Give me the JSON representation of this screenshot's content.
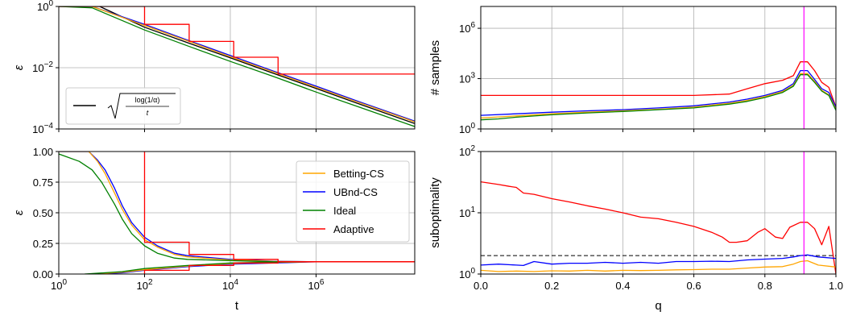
{
  "chart_data": [
    {
      "id": "tl",
      "type": "line",
      "xscale": "log",
      "yscale": "log",
      "xlim": [
        1,
        200000000
      ],
      "ylim": [
        0.0001,
        1
      ],
      "xlabel": "",
      "ylabel": "ε",
      "xticks": [
        {
          "v": 1,
          "t": ""
        },
        {
          "v": 100,
          "t": ""
        },
        {
          "v": 10000,
          "t": ""
        },
        {
          "v": 1000000,
          "t": ""
        }
      ],
      "yticks": [
        {
          "v": 0.0001,
          "b": "10",
          "e": "−4"
        },
        {
          "v": 0.01,
          "b": "10",
          "e": "−2"
        },
        {
          "v": 1,
          "b": "10",
          "e": "0"
        }
      ],
      "grid": true,
      "legend": {
        "placement": "lower-left",
        "entries": [
          {
            "name": "√(log(1/α)/t)",
            "color": "#000000"
          }
        ]
      },
      "series": [
        {
          "key": "bound",
          "color": "#000000",
          "x": [
            1,
            9,
            100,
            1000,
            10000,
            100000,
            1000000,
            10000000,
            200000000
          ],
          "y": [
            1,
            1,
            0.21,
            0.066,
            0.021,
            0.0066,
            0.0021,
            0.00066,
            0.00015
          ]
        },
        {
          "key": "ubnd",
          "color": "#0000ff",
          "x": [
            1,
            6,
            100,
            1000,
            10000,
            100000,
            1000000,
            10000000,
            200000000
          ],
          "y": [
            1,
            1,
            0.26,
            0.08,
            0.025,
            0.0078,
            0.0025,
            0.00078,
            0.00018
          ]
        },
        {
          "key": "betting",
          "color": "#ffa500",
          "x": [
            1,
            6,
            100,
            1000,
            10000,
            100000,
            1000000,
            10000000,
            200000000
          ],
          "y": [
            1,
            1,
            0.24,
            0.075,
            0.023,
            0.0073,
            0.0023,
            0.00073,
            0.00017
          ]
        },
        {
          "key": "ideal",
          "color": "#008000",
          "x": [
            1,
            6,
            100,
            1000,
            10000,
            100000,
            1000000,
            10000000,
            200000000
          ],
          "y": [
            1,
            0.9,
            0.17,
            0.052,
            0.016,
            0.0052,
            0.0016,
            0.00052,
            0.00012
          ]
        },
        {
          "key": "adaptive",
          "color": "#ff0000",
          "step": true,
          "x": [
            1,
            100,
            100,
            1100,
            1100,
            12000,
            12000,
            130000,
            130000,
            200000000
          ],
          "y": [
            1,
            1,
            0.26,
            0.26,
            0.072,
            0.072,
            0.022,
            0.022,
            0.0062,
            0.0062
          ]
        }
      ]
    },
    {
      "id": "bl",
      "type": "line",
      "xscale": "log",
      "yscale": "linear",
      "xlim": [
        1,
        200000000
      ],
      "ylim": [
        0,
        1
      ],
      "xlabel": "t",
      "ylabel": "ε",
      "xticks": [
        {
          "v": 1,
          "b": "10",
          "e": "0"
        },
        {
          "v": 100,
          "b": "10",
          "e": "2"
        },
        {
          "v": 10000,
          "b": "10",
          "e": "4"
        },
        {
          "v": 1000000,
          "b": "10",
          "e": "6"
        }
      ],
      "yticks": [
        {
          "v": 0,
          "t": "0.00"
        },
        {
          "v": 0.25,
          "t": "0.25"
        },
        {
          "v": 0.5,
          "t": "0.50"
        },
        {
          "v": 0.75,
          "t": "0.75"
        },
        {
          "v": 1,
          "t": "1.00"
        }
      ],
      "grid": true,
      "legend": {
        "placement": "upper-right",
        "entries": [
          {
            "name": "Betting-CS",
            "color": "#ffa500"
          },
          {
            "name": "UBnd-CS",
            "color": "#0000ff"
          },
          {
            "name": "Ideal",
            "color": "#008000"
          },
          {
            "name": "Adaptive",
            "color": "#ff0000"
          }
        ]
      },
      "series": [
        {
          "key": "ubnd_up",
          "color": "#0000ff",
          "x": [
            1,
            5,
            8,
            12,
            20,
            30,
            50,
            100,
            200,
            500,
            1000,
            10000,
            100000,
            1000000,
            200000000
          ],
          "y": [
            1,
            1,
            0.93,
            0.85,
            0.7,
            0.56,
            0.42,
            0.3,
            0.23,
            0.17,
            0.15,
            0.12,
            0.105,
            0.1,
            0.1
          ]
        },
        {
          "key": "betting_up",
          "color": "#ffa500",
          "x": [
            1,
            5,
            8,
            12,
            20,
            30,
            50,
            100,
            200,
            500,
            1000,
            10000,
            100000,
            1000000,
            200000000
          ],
          "y": [
            1,
            1,
            0.92,
            0.82,
            0.66,
            0.53,
            0.4,
            0.28,
            0.22,
            0.16,
            0.14,
            0.115,
            0.103,
            0.1,
            0.1
          ]
        },
        {
          "key": "ideal_up",
          "color": "#008000",
          "x": [
            1,
            3,
            6,
            10,
            20,
            30,
            50,
            100,
            200,
            500,
            1000,
            10000,
            100000,
            1000000,
            200000000
          ],
          "y": [
            0.98,
            0.92,
            0.85,
            0.75,
            0.57,
            0.45,
            0.33,
            0.23,
            0.17,
            0.13,
            0.12,
            0.11,
            0.1,
            0.1,
            0.1
          ]
        },
        {
          "key": "ubnd_lo",
          "color": "#0000ff",
          "x": [
            8,
            30,
            100,
            1000,
            10000,
            100000,
            1000000,
            200000000
          ],
          "y": [
            0,
            0.01,
            0.03,
            0.06,
            0.08,
            0.09,
            0.1,
            0.1
          ]
        },
        {
          "key": "betting_lo",
          "color": "#ffa500",
          "x": [
            6,
            30,
            100,
            1000,
            10000,
            100000,
            1000000,
            200000000
          ],
          "y": [
            0,
            0.015,
            0.035,
            0.065,
            0.085,
            0.095,
            0.1,
            0.1
          ]
        },
        {
          "key": "ideal_lo",
          "color": "#008000",
          "x": [
            4,
            30,
            100,
            1000,
            10000,
            100000,
            1000000,
            200000000
          ],
          "y": [
            0,
            0.02,
            0.045,
            0.07,
            0.09,
            0.097,
            0.1,
            0.1
          ]
        },
        {
          "key": "adaptive_up",
          "color": "#ff0000",
          "step": true,
          "x": [
            100,
            100,
            1100,
            1100,
            12000,
            12000,
            130000,
            130000,
            200000000
          ],
          "y": [
            1,
            0.26,
            0.26,
            0.16,
            0.16,
            0.12,
            0.12,
            0.1,
            0.1
          ]
        },
        {
          "key": "adaptive_lo",
          "color": "#ff0000",
          "step": true,
          "x": [
            100,
            100,
            1100,
            1100,
            12000,
            12000,
            130000,
            130000,
            200000000
          ],
          "y": [
            0,
            0.03,
            0.03,
            0.07,
            0.07,
            0.09,
            0.09,
            0.1,
            0.1
          ]
        }
      ]
    },
    {
      "id": "tr",
      "type": "line",
      "xscale": "linear",
      "yscale": "log",
      "xlim": [
        0,
        1
      ],
      "ylim": [
        1,
        20000000
      ],
      "xlabel": "",
      "ylabel": "# samples",
      "xticks": [
        {
          "v": 0,
          "t": ""
        },
        {
          "v": 0.2,
          "t": ""
        },
        {
          "v": 0.4,
          "t": ""
        },
        {
          "v": 0.6,
          "t": ""
        },
        {
          "v": 0.8,
          "t": ""
        },
        {
          "v": 1,
          "t": ""
        }
      ],
      "yticks": [
        {
          "v": 1,
          "b": "10",
          "e": "0"
        },
        {
          "v": 1000,
          "b": "10",
          "e": "3"
        },
        {
          "v": 1000000,
          "b": "10",
          "e": "6"
        }
      ],
      "grid": true,
      "vline": {
        "x": 0.91,
        "color": "#ff00ff"
      },
      "series": [
        {
          "key": "adaptive",
          "color": "#ff0000",
          "x": [
            0,
            0.1,
            0.2,
            0.3,
            0.4,
            0.5,
            0.6,
            0.7,
            0.75,
            0.8,
            0.85,
            0.88,
            0.9,
            0.92,
            0.94,
            0.96,
            0.98,
            1
          ],
          "y": [
            100,
            100,
            100,
            100,
            100,
            100,
            100,
            120,
            250,
            500,
            800,
            1500,
            10000,
            10000,
            3000,
            600,
            300,
            20
          ]
        },
        {
          "key": "ubnd",
          "color": "#0000ff",
          "x": [
            0,
            0.1,
            0.2,
            0.3,
            0.4,
            0.5,
            0.6,
            0.7,
            0.75,
            0.8,
            0.85,
            0.88,
            0.9,
            0.92,
            0.94,
            0.96,
            0.98,
            1
          ],
          "y": [
            6.5,
            8,
            10,
            12,
            14,
            18,
            24,
            40,
            60,
            100,
            200,
            500,
            3000,
            3000,
            900,
            250,
            150,
            20
          ]
        },
        {
          "key": "betting",
          "color": "#ffa500",
          "x": [
            0,
            0.1,
            0.2,
            0.3,
            0.4,
            0.5,
            0.6,
            0.7,
            0.75,
            0.8,
            0.85,
            0.88,
            0.9,
            0.92,
            0.94,
            0.96,
            0.98,
            1
          ],
          "y": [
            4.5,
            6,
            8,
            10,
            12,
            15,
            20,
            34,
            50,
            85,
            170,
            400,
            2000,
            2000,
            700,
            200,
            110,
            15
          ]
        },
        {
          "key": "ideal",
          "color": "#008000",
          "x": [
            0,
            0.05,
            0.1,
            0.2,
            0.3,
            0.4,
            0.5,
            0.6,
            0.7,
            0.75,
            0.8,
            0.85,
            0.88,
            0.9,
            0.92,
            0.94,
            0.96,
            0.98,
            1
          ],
          "y": [
            3.5,
            4,
            5,
            7,
            9,
            11,
            14,
            18,
            30,
            44,
            75,
            150,
            350,
            1700,
            1700,
            600,
            180,
            100,
            13
          ]
        }
      ]
    },
    {
      "id": "br",
      "type": "line",
      "xscale": "linear",
      "yscale": "log",
      "xlim": [
        0,
        1
      ],
      "ylim": [
        1,
        100
      ],
      "xlabel": "q",
      "ylabel": "suboptimality",
      "xticks": [
        {
          "v": 0,
          "t": "0.0"
        },
        {
          "v": 0.2,
          "t": "0.2"
        },
        {
          "v": 0.4,
          "t": "0.4"
        },
        {
          "v": 0.6,
          "t": "0.6"
        },
        {
          "v": 0.8,
          "t": "0.8"
        },
        {
          "v": 1,
          "t": "1.0"
        }
      ],
      "yticks": [
        {
          "v": 1,
          "b": "10",
          "e": "0"
        },
        {
          "v": 10,
          "b": "10",
          "e": "1"
        },
        {
          "v": 100,
          "b": "10",
          "e": "2"
        }
      ],
      "grid": true,
      "vline": {
        "x": 0.91,
        "color": "#ff00ff"
      },
      "hline": {
        "y": 2,
        "color": "#000000",
        "dashed": true
      },
      "series": [
        {
          "key": "adaptive",
          "color": "#ff0000",
          "x": [
            0,
            0.05,
            0.08,
            0.1,
            0.12,
            0.15,
            0.2,
            0.25,
            0.3,
            0.35,
            0.4,
            0.45,
            0.5,
            0.55,
            0.6,
            0.65,
            0.68,
            0.7,
            0.72,
            0.75,
            0.78,
            0.8,
            0.83,
            0.85,
            0.87,
            0.9,
            0.92,
            0.94,
            0.96,
            0.98,
            1
          ],
          "y": [
            32,
            29,
            27,
            26,
            21,
            20,
            17,
            15,
            13,
            11.5,
            10,
            8.5,
            8,
            7,
            6,
            4.8,
            4,
            3.3,
            3.3,
            3.5,
            4.8,
            5.5,
            4,
            3.8,
            5.8,
            7,
            7,
            5.5,
            3,
            6,
            1
          ]
        },
        {
          "key": "ubnd",
          "color": "#0000ff",
          "x": [
            0,
            0.05,
            0.1,
            0.12,
            0.15,
            0.2,
            0.25,
            0.3,
            0.35,
            0.4,
            0.45,
            0.5,
            0.55,
            0.6,
            0.65,
            0.7,
            0.75,
            0.8,
            0.85,
            0.88,
            0.9,
            0.92,
            0.95,
            1
          ],
          "y": [
            1.4,
            1.45,
            1.4,
            1.38,
            1.6,
            1.45,
            1.5,
            1.5,
            1.55,
            1.5,
            1.55,
            1.5,
            1.6,
            1.6,
            1.62,
            1.6,
            1.7,
            1.75,
            1.8,
            1.9,
            2.0,
            2.05,
            1.9,
            1.8
          ]
        },
        {
          "key": "betting",
          "color": "#ffa500",
          "x": [
            0,
            0.05,
            0.1,
            0.15,
            0.2,
            0.25,
            0.3,
            0.35,
            0.4,
            0.45,
            0.5,
            0.55,
            0.6,
            0.65,
            0.7,
            0.75,
            0.8,
            0.85,
            0.88,
            0.9,
            0.92,
            0.95,
            1
          ],
          "y": [
            1.15,
            1.1,
            1.12,
            1.1,
            1.13,
            1.12,
            1.15,
            1.12,
            1.15,
            1.14,
            1.15,
            1.17,
            1.18,
            1.2,
            1.2,
            1.25,
            1.3,
            1.32,
            1.45,
            1.6,
            1.65,
            1.4,
            1.3
          ]
        }
      ]
    }
  ]
}
